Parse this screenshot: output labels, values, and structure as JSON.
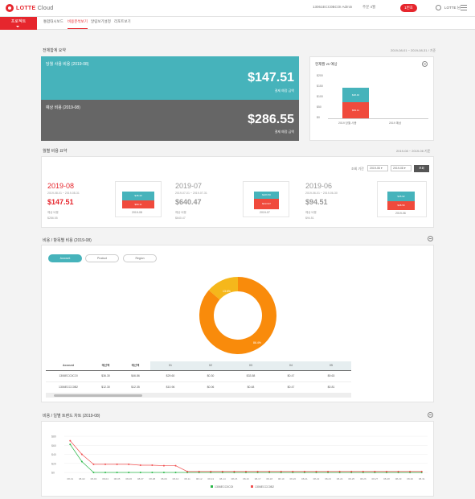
{
  "header": {
    "logo_brand": "LOTTE",
    "logo_product": "Cloud",
    "account_select": "13061ECC0BCOI Admin",
    "role_select": "주문 4월",
    "action_button": "1번호",
    "user_name": "LOTTE 님"
  },
  "nav": {
    "service_label": "프로젝트",
    "tabs": [
      "통합대시보드",
      "비용분석보기",
      "알림보기설정",
      "리포트보기"
    ]
  },
  "summary": {
    "title": "전체합계 요약",
    "date_note": "2019-08-01 ~ 2019-08-31 / 기준",
    "current_label": "당월 사용 비용 (2019-08)",
    "current_amount": "$147.51",
    "current_sub": "결제 예정 금액",
    "forecast_label": "예상 비용 (2019-08)",
    "forecast_amount": "$286.55",
    "forecast_sub": "결제 예정 금액",
    "mini_chart": {
      "title": "현재월 vs 예상",
      "y_ticks": [
        "$200",
        "$150",
        "$100",
        "$50",
        "$0"
      ],
      "seg_top": "$48.40",
      "seg_bottom": "$99.11",
      "x_labels": [
        "2019 당월 사용",
        "2019 예상"
      ]
    }
  },
  "monthly": {
    "title": "월별 비용 요약",
    "date_note": "2019-08 ~ 2019-06 기준",
    "filter_label": "조회 기간",
    "filter_from": "2019-06 ▾",
    "filter_to": "2019-08 ▾",
    "search_button": "조회",
    "months": [
      {
        "title": "2019-08",
        "range": "2019-08-01 ~ 2019-08-31",
        "amount": "$147.51",
        "foot1": "예상 비용",
        "foot2": "$286.55",
        "seg_top": "$48.40",
        "seg_bottom": "$99.11",
        "x_label": "2019-08"
      },
      {
        "title": "2019-07",
        "range": "2019-07-01 ~ 2019-07-31",
        "amount": "$640.47",
        "foot1": "예상 비용",
        "foot2": "$640.47",
        "seg_top": "$226.50",
        "seg_bottom": "$413.97",
        "x_label": "2019-07"
      },
      {
        "title": "2019-06",
        "range": "2019-06-01 ~ 2019-06-30",
        "amount": "$94.51",
        "foot1": "예상 비용",
        "foot2": "$94.51",
        "seg_top": "$45.92",
        "seg_bottom": "$48.59",
        "x_label": "2019-06"
      }
    ]
  },
  "breakdown": {
    "title": "비용 / 항목별 비용 (2019-08)",
    "tabs": [
      "Account",
      "Product",
      "Region"
    ],
    "colors": {
      "major": "#f98b0b",
      "minor": "#f5b71b"
    },
    "donut": {
      "minor_label": "13.6%",
      "major_label": "86.4%",
      "minor_pct": 13.6
    },
    "table": {
      "headers": [
        "Account",
        "예산액",
        "예산액",
        "01",
        "02",
        "03",
        "04",
        "05",
        "06"
      ],
      "rows": [
        [
          "1306ECC0COI",
          "$36.30",
          "$46.86",
          "$29.60",
          "$0.30",
          "$33.58",
          "$0.47",
          "$9.63",
          "$9.51"
        ],
        [
          "1306ECCC0B2",
          "$12.30",
          "$12.35",
          "$10.96",
          "$0.06",
          "$0.48",
          "$0.47",
          "$0.81",
          "$0.10"
        ]
      ]
    }
  },
  "trend": {
    "title": "비용 / 일별 트렌드 차트 (2019-08)",
    "legend": [
      "1306ECC0COI",
      "1306ECCC0B2"
    ],
    "colors": {
      "series1": "#2bb84a",
      "series2": "#f05050"
    },
    "y_ticks": [
      "$80",
      "$60",
      "$40",
      "$20",
      "$0"
    ],
    "x_labels": [
      "08-01",
      "08-02",
      "08-03",
      "08-04",
      "08-05",
      "08-06",
      "08-07",
      "08-08",
      "08-09",
      "08-10",
      "08-11",
      "08-12",
      "08-13",
      "08-14",
      "08-15",
      "08-16",
      "08-17",
      "08-18",
      "08-19",
      "08-20",
      "08-21",
      "08-22",
      "08-23",
      "08-24",
      "08-25",
      "08-26",
      "08-27",
      "08-28",
      "08-29",
      "08-30",
      "08-31"
    ]
  },
  "chart_data": [
    {
      "type": "bar",
      "title": "현재월 vs 예상",
      "categories": [
        "2019 당월 사용",
        "2019 예상"
      ],
      "series": [
        {
          "name": "",
          "values": [
            99.11,
            0
          ]
        },
        {
          "name": "",
          "values": [
            48.4,
            0
          ]
        }
      ],
      "ylim": [
        0,
        200
      ]
    },
    {
      "type": "pie",
      "title": "비용 / 항목별 비용 (2019-08)",
      "labels": [
        "",
        ""
      ],
      "values": [
        86.4,
        13.6
      ]
    },
    {
      "type": "line",
      "title": "비용 / 일별 트렌드 차트 (2019-08)",
      "categories": [
        "08-01",
        "08-02",
        "08-03",
        "08-04",
        "08-05",
        "08-06",
        "08-07",
        "08-08",
        "08-09",
        "08-10",
        "08-11",
        "08-12",
        "08-13",
        "08-14",
        "08-15",
        "08-16",
        "08-17",
        "08-18",
        "08-19",
        "08-20",
        "08-21",
        "08-22",
        "08-23",
        "08-24",
        "08-25",
        "08-26",
        "08-27",
        "08-28",
        "08-29",
        "08-30",
        "08-31"
      ],
      "series": [
        {
          "name": "1306ECC0COI",
          "values": [
            62,
            24,
            0,
            0,
            0,
            0,
            0,
            0,
            0,
            0,
            0,
            0,
            0,
            0,
            0,
            0,
            0,
            0,
            0,
            0,
            0,
            0,
            0,
            0,
            0,
            0,
            0,
            0,
            0,
            0,
            0
          ]
        },
        {
          "name": "1306ECCC0B2",
          "values": [
            70,
            40,
            18,
            18,
            18,
            18,
            16,
            16,
            15,
            15,
            2,
            2,
            2,
            2,
            2,
            2,
            2,
            2,
            2,
            2,
            2,
            2,
            2,
            2,
            2,
            2,
            2,
            2,
            2,
            2,
            2
          ]
        }
      ],
      "ylim": [
        0,
        80
      ]
    }
  ]
}
